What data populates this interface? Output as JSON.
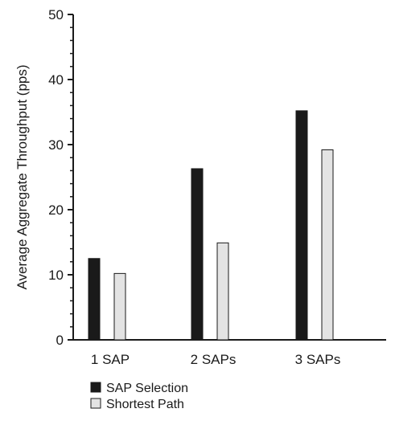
{
  "chart_data": {
    "type": "bar",
    "ylabel": "Average Aggregate Throughput (pps)",
    "xlabel": "",
    "ylim": [
      0,
      50
    ],
    "yticks": [
      0,
      10,
      20,
      30,
      40,
      50
    ],
    "categories": [
      "1 SAP",
      "2 SAPs",
      "3 SAPs"
    ],
    "series": [
      {
        "name": "SAP Selection",
        "values": [
          12.5,
          26.3,
          35.2
        ],
        "color": "#1a1a1a"
      },
      {
        "name": "Shortest Path",
        "values": [
          10.2,
          14.9,
          29.2
        ],
        "color": "#e3e3e3"
      }
    ],
    "grid": false,
    "legend_position": "bottom-left"
  }
}
